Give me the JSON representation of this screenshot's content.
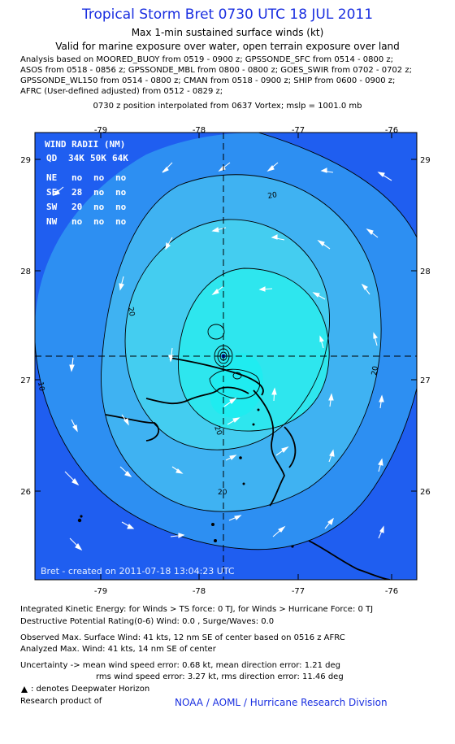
{
  "header": {
    "title": "Tropical Storm Bret 0730 UTC 18 JUL 2011",
    "subtitle1": "Max 1-min sustained surface winds (kt)",
    "subtitle2": "Valid for marine exposure over water, open terrain exposure over land"
  },
  "analysis_lines": [
    "Analysis based on MOORED_BUOY from 0519 - 0900 z; GPSSONDE_SFC from 0514 - 0800 z;",
    "ASOS from 0518 - 0856 z; GPSSONDE_MBL from 0800 - 0800 z; GOES_SWIR from 0702 - 0702 z;",
    "GPSSONDE_WL150 from 0514 - 0800 z; CMAN from 0518 - 0900 z; SHIP from 0600 - 0900 z;",
    "AFRC (User-defined adjusted) from 0512 - 0829 z;"
  ],
  "position_line": "0730 z position interpolated from 0637 Vortex; mslp = 1001.0 mb",
  "map": {
    "lon_ticks": [
      "-79",
      "-78",
      "-77",
      "-76"
    ],
    "lat_ticks": [
      "29",
      "28",
      "27",
      "26"
    ],
    "contour_labels": [
      "20",
      "20",
      "20",
      "20",
      "20",
      "10"
    ],
    "credit": "Bret - created on 2011-07-18 13:04:23 UTC",
    "wind_radii": {
      "title": "WIND RADII (NM)",
      "header": [
        "QD",
        "34K",
        "50K",
        "64K"
      ],
      "rows": [
        {
          "q": "NE",
          "v34": "no",
          "v50": "no",
          "v64": "no"
        },
        {
          "q": "SE",
          "v34": "28",
          "v50": "no",
          "v64": "no"
        },
        {
          "q": "SW",
          "v34": "20",
          "v50": "no",
          "v64": "no"
        },
        {
          "q": "NW",
          "v34": "no",
          "v50": "no",
          "v64": "no"
        }
      ]
    },
    "colors": {
      "outer": "#1f5ef0",
      "ring1": "#2d8ff2",
      "ring2": "#3fb2f2",
      "ring3": "#44cdf0",
      "core": "#2ee6ee",
      "bright": "#1fecf0"
    }
  },
  "footer": {
    "ike": "Integrated Kinetic Energy:  for Winds > TS force: 0 TJ,  for Winds > Hurricane Force: 0 TJ",
    "dpr": "Destructive Potential Rating(0-6)   Wind: 0.0 , Surge/Waves: 0.0",
    "obs_max": "Observed Max. Surface Wind: 41 kts, 12 nm SE of center based on 0516 z AFRC",
    "analyzed_max": "Analyzed Max. Wind: 41 kts, 14 nm SE of center",
    "uncertainty1": "Uncertainty -> mean wind speed error: 0.68 kt,   mean direction error: 1.21 deg",
    "uncertainty2": "rms wind speed error: 3.27 kt,   rms direction error: 11.46 deg",
    "deepwater": ": denotes Deepwater Horizon",
    "research": "Research product of",
    "noaa": "NOAA / AOML / Hurricane Research Division"
  }
}
